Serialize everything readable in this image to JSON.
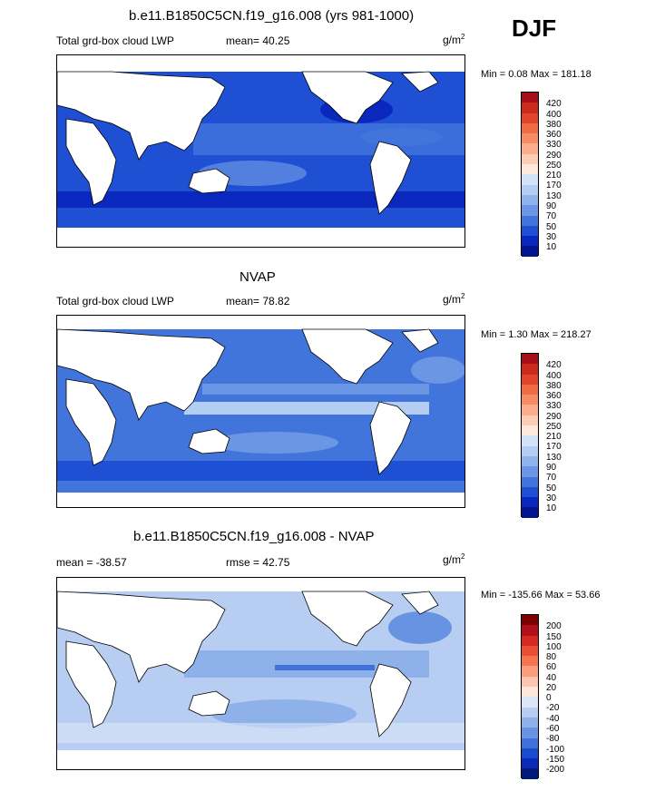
{
  "season": "DJF",
  "panels": [
    {
      "title": "b.e11.B1850C5CN.f19_g16.008 (yrs 981-1000)",
      "left": "Total grd-box cloud LWP",
      "center": "mean=  40.25",
      "unit": "g/m",
      "unit_sup": "2",
      "minmax": "Min =   0.08 Max = 181.18",
      "levels": [
        "420",
        "400",
        "380",
        "360",
        "330",
        "290",
        "250",
        "210",
        "170",
        "130",
        "90",
        "70",
        "50",
        "30",
        "10"
      ],
      "colors": [
        "#a50f15",
        "#cb2a1d",
        "#e0442a",
        "#ef6a45",
        "#f58c64",
        "#f9ad8c",
        "#fccdb2",
        "#fde8dc",
        "#d3e2f7",
        "#b4cdf2",
        "#8fb3ec",
        "#6a96e4",
        "#4275dc",
        "#1f4fd3",
        "#0a28bd",
        "#04148e"
      ]
    },
    {
      "title": "NVAP",
      "left": "Total grd-box cloud LWP",
      "center": "mean=  78.82",
      "unit": "g/m",
      "unit_sup": "2",
      "minmax": "Min =   1.30 Max = 218.27",
      "levels": [
        "420",
        "400",
        "380",
        "360",
        "330",
        "290",
        "250",
        "210",
        "170",
        "130",
        "90",
        "70",
        "50",
        "30",
        "10"
      ],
      "colors": [
        "#a50f15",
        "#cb2a1d",
        "#e0442a",
        "#ef6a45",
        "#f58c64",
        "#f9ad8c",
        "#fccdb2",
        "#fde8dc",
        "#d3e2f7",
        "#b4cdf2",
        "#8fb3ec",
        "#6a96e4",
        "#4275dc",
        "#1f4fd3",
        "#0a28bd",
        "#04148e"
      ]
    },
    {
      "title": "b.e11.B1850C5CN.f19_g16.008 - NVAP",
      "left": "mean = -38.57",
      "center": "rmse =  42.75",
      "unit": "g/m",
      "unit_sup": "2",
      "minmax": "Min = -135.66 Max =  53.66",
      "levels": [
        "200",
        "150",
        "100",
        "80",
        "60",
        "40",
        "20",
        "0",
        "-20",
        "-40",
        "-60",
        "-80",
        "-100",
        "-150",
        "-200"
      ],
      "colors": [
        "#7f0000",
        "#b2101a",
        "#d42a22",
        "#eb4f33",
        "#f67550",
        "#fa9d7d",
        "#fcc5ad",
        "#fde6da",
        "#dbe6f8",
        "#b7cdf1",
        "#8fb1ea",
        "#6893e2",
        "#3f71d8",
        "#1b4bcf",
        "#0a2bb8",
        "#001a7a"
      ]
    }
  ]
}
